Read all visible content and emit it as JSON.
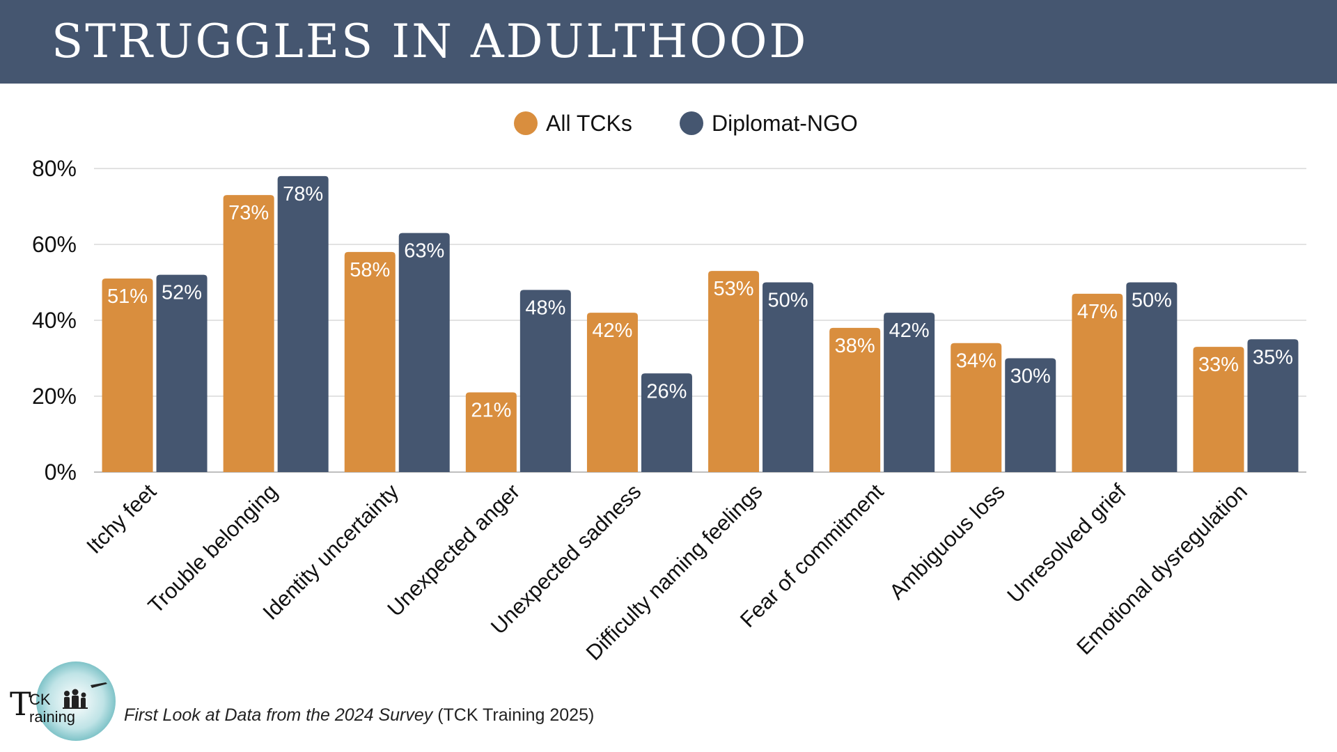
{
  "title": "STRUGGLES IN ADULTHOOD",
  "colors": {
    "banner": "#455670",
    "all_tcks": "#D98E3E",
    "diplomat_ngo": "#455670",
    "grid": "#d9d9d9"
  },
  "chart_data": {
    "type": "bar",
    "categories": [
      "Itchy feet",
      "Trouble belonging",
      "Identity uncertainty",
      "Unexpected anger",
      "Unexpected sadness",
      "Difficulty naming feelings",
      "Fear of commitment",
      "Ambiguous loss",
      "Unresolved grief",
      "Emotional dysregulation"
    ],
    "series": [
      {
        "name": "All TCKs",
        "values": [
          51,
          73,
          58,
          21,
          42,
          53,
          38,
          34,
          47,
          33
        ],
        "labels": [
          "51%",
          "73%",
          "58%",
          "21%",
          "42%",
          "53%",
          "38%",
          "34%",
          "47%",
          "33%"
        ],
        "color": "#D98E3E"
      },
      {
        "name": "Diplomat-NGO",
        "values": [
          52,
          78,
          63,
          48,
          26,
          50,
          42,
          30,
          50,
          35
        ],
        "labels": [
          "52%",
          "78%",
          "63%",
          "48%",
          "26%",
          "50%",
          "42%",
          "30%",
          "50%",
          "35%"
        ],
        "color": "#455670"
      }
    ],
    "yticks": [
      "0%",
      "20%",
      "40%",
      "60%",
      "80%"
    ],
    "ylim": [
      0,
      80
    ],
    "grid": true,
    "legend_position": "top-center"
  },
  "logo": {
    "line1": "CK",
    "line2": "raining",
    "initial": "T"
  },
  "footnote": {
    "italic": "First Look at Data from the 2024 Survey",
    "plain": " (TCK Training 2025)"
  }
}
